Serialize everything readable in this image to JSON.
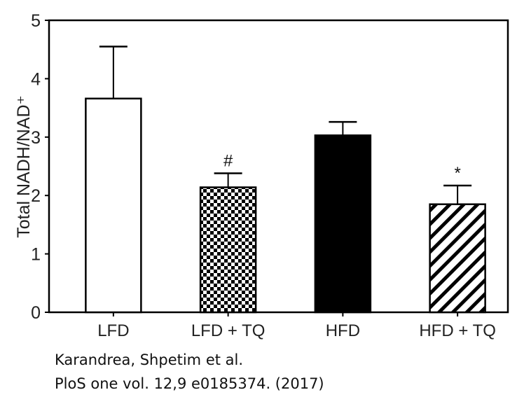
{
  "chart_data": {
    "type": "bar",
    "title": "",
    "xlabel": "",
    "ylabel": "Total NADH/NAD⁺",
    "ylim": [
      0,
      5
    ],
    "yticks": [
      "0",
      "1",
      "2",
      "3",
      "4",
      "5"
    ],
    "categories": [
      "LFD",
      "LFD + TQ",
      "HFD",
      "HFD + TQ"
    ],
    "values": [
      3.66,
      2.14,
      3.03,
      1.85
    ],
    "error_upper": [
      4.55,
      2.38,
      3.26,
      2.17
    ],
    "fills": [
      "white",
      "checkered",
      "black",
      "diagonal-hatch"
    ],
    "annotations": [
      "",
      "#",
      "",
      "*"
    ],
    "grid": false
  },
  "citation": {
    "line1": "Karandrea, Shpetim et al.",
    "line2": "PloS one vol. 12,9 e0185374. (2017)"
  }
}
